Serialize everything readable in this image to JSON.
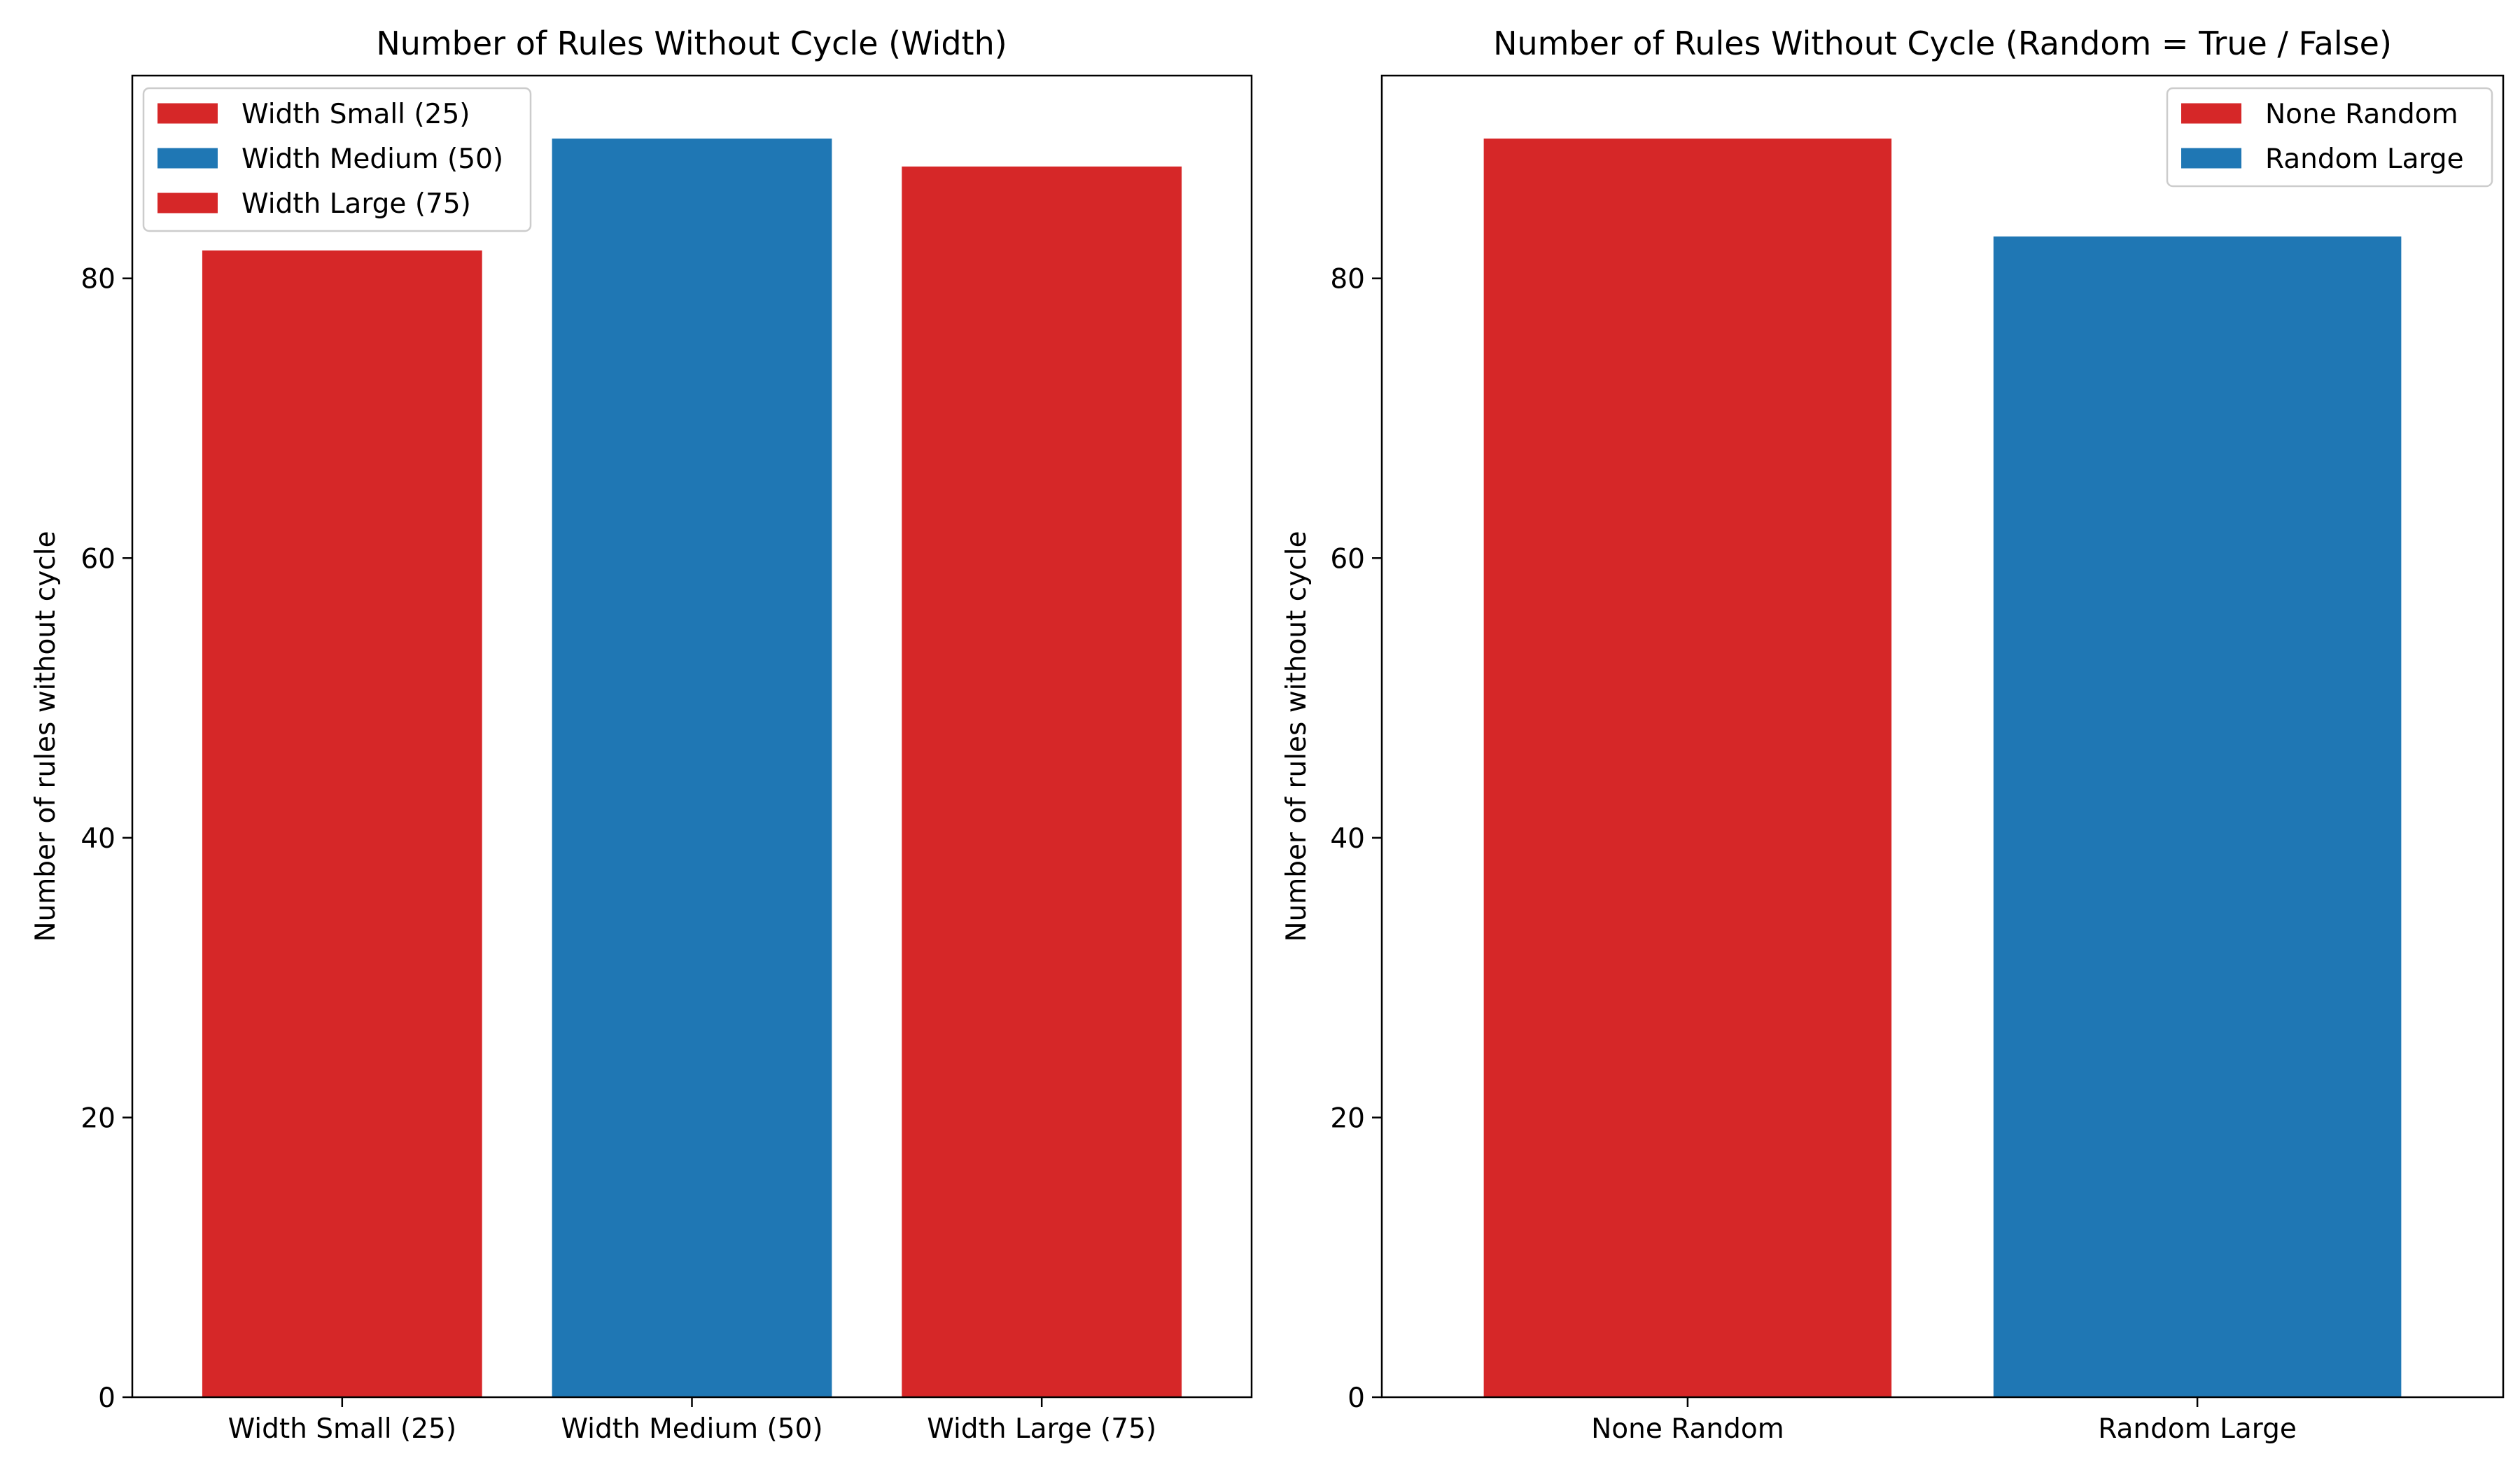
{
  "chart_data": [
    {
      "type": "bar",
      "title": "Number of Rules Without Cycle (Width)",
      "xlabel": "",
      "ylabel": "Number of rules without cycle",
      "categories": [
        "Width Small (25)",
        "Width Medium (50)",
        "Width Large (75)"
      ],
      "values": [
        82,
        90,
        88
      ],
      "colors": [
        "#d62728",
        "#1f77b4",
        "#d62728"
      ],
      "ylim": [
        0,
        94.5
      ],
      "yticks": [
        0,
        20,
        40,
        60,
        80
      ],
      "legend": {
        "placement": "upper-left",
        "entries": [
          {
            "label": "Width Small (25)",
            "color": "#d62728"
          },
          {
            "label": "Width Medium (50)",
            "color": "#1f77b4"
          },
          {
            "label": "Width Large (75)",
            "color": "#d62728"
          }
        ]
      },
      "grid": false
    },
    {
      "type": "bar",
      "title": "Number of Rules Without Cycle (Random = True / False)",
      "xlabel": "",
      "ylabel": "Number of rules without cycle",
      "categories": [
        "None Random",
        "Random Large"
      ],
      "values": [
        90,
        83
      ],
      "colors": [
        "#d62728",
        "#1f77b4"
      ],
      "ylim": [
        0,
        94.5
      ],
      "yticks": [
        0,
        20,
        40,
        60,
        80
      ],
      "legend": {
        "placement": "upper-right",
        "entries": [
          {
            "label": "None Random",
            "color": "#d62728"
          },
          {
            "label": "Random Large",
            "color": "#1f77b4"
          }
        ]
      },
      "grid": false
    }
  ]
}
